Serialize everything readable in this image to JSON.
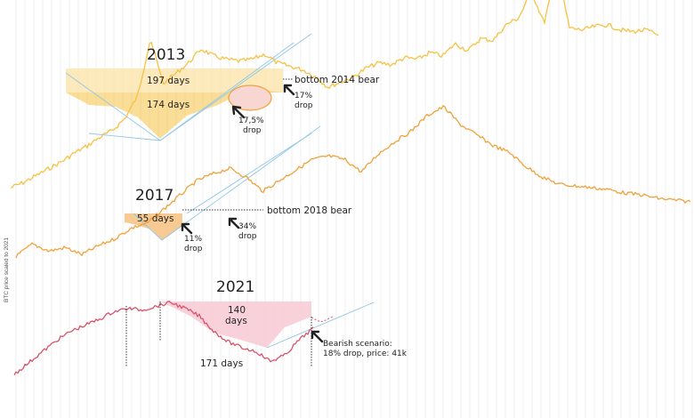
{
  "ylabel": "BTC price scaled to 2021",
  "colors": {
    "c2013": "#f6c243",
    "c2017": "#f0a23a",
    "c2021": "#d9536b",
    "trend": "#8fc7e8",
    "grid": "#e4e4e4",
    "fill2013": "#fbe1a6",
    "fill2017": "#f6bd78",
    "fill2021": "#f8c9d3"
  },
  "cycles": {
    "y2013": {
      "title": "2013",
      "span_top": "197 days",
      "span_inner": "174 days",
      "drop_pct": "17,5%",
      "drop_word": "drop",
      "bottom_pct": "17%",
      "bottom_word": "drop",
      "bottom_label": "bottom 2014 bear"
    },
    "y2017": {
      "title": "2017",
      "span": "55 days",
      "drop_pct": "11%",
      "drop_word": "drop",
      "bottom_pct": "34%",
      "bottom_word": "drop",
      "bottom_label": "bottom 2018 bear"
    },
    "y2021": {
      "title": "2021",
      "span_top": "140",
      "span_top2": "days",
      "span_full": "171 days",
      "scenario_line1": "Bearish scenario:",
      "scenario_line2": "18% drop,  price: 41k"
    }
  },
  "chart_data": {
    "type": "line",
    "ylabel": "BTC price scaled to 2021",
    "series": [
      {
        "name": "2013",
        "shape": [
          0.02,
          0.05,
          0.09,
          0.13,
          0.17,
          0.22,
          0.26,
          0.31,
          0.35,
          0.42,
          0.55,
          0.88,
          0.62,
          0.68,
          0.74,
          0.82,
          0.78,
          0.76,
          0.75,
          0.76,
          0.79,
          0.74,
          0.72,
          0.7,
          0.66,
          0.6,
          0.63,
          0.66,
          0.71,
          0.74,
          0.73,
          0.77,
          0.76,
          0.8,
          0.78,
          0.85,
          0.81,
          0.88,
          0.87,
          0.96,
          1.0,
          1.15,
          0.97,
          1.28,
          0.94,
          0.93,
          0.95,
          0.96,
          0.93,
          0.92,
          0.93,
          0.9
        ]
      },
      {
        "name": "2017",
        "shape": [
          0.15,
          0.22,
          0.18,
          0.2,
          0.16,
          0.21,
          0.25,
          0.31,
          0.34,
          0.42,
          0.5,
          0.58,
          0.62,
          0.65,
          0.6,
          0.52,
          0.58,
          0.64,
          0.7,
          0.72,
          0.7,
          0.63,
          0.73,
          0.8,
          0.86,
          0.95,
          1.0,
          0.9,
          0.84,
          0.78,
          0.74,
          0.66,
          0.6,
          0.56,
          0.55,
          0.54,
          0.53,
          0.51,
          0.5,
          0.48,
          0.47,
          0.46
        ]
      },
      {
        "name": "2021",
        "shape": [
          0.05,
          0.2,
          0.35,
          0.5,
          0.62,
          0.7,
          0.78,
          0.88,
          0.92,
          0.9,
          0.95,
          1.0,
          0.92,
          0.82,
          0.62,
          0.48,
          0.4,
          0.35,
          0.22,
          0.3,
          0.5,
          0.66
        ]
      }
    ],
    "annotations": [
      "197 days",
      "174 days",
      "17,5% drop",
      "17% drop",
      "bottom 2014 bear",
      "55 days",
      "11% drop",
      "34% drop",
      "bottom 2018 bear",
      "140 days",
      "171 days",
      "Bearish scenario: 18% drop, price: 41k"
    ]
  }
}
